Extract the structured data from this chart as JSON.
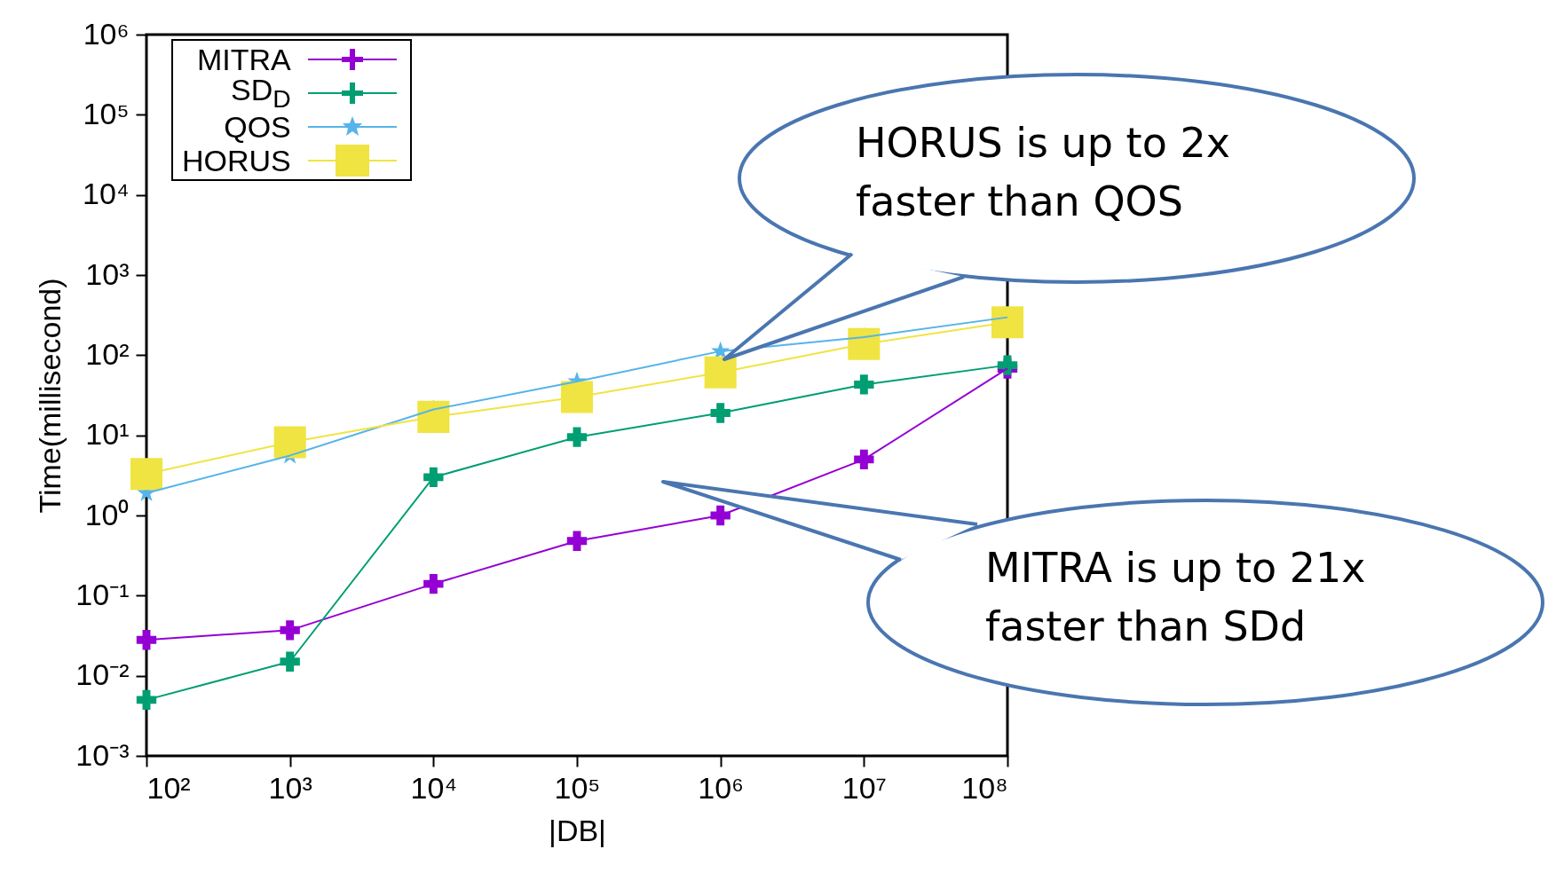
{
  "chart_data": {
    "type": "line",
    "xlabel": "|DB|",
    "ylabel": "Time(millisecond)",
    "log": "xy",
    "legend": "top left",
    "grid": false,
    "x": [
      100,
      1000,
      10000,
      100000,
      1000000,
      10000000,
      100000000
    ],
    "xlim": [
      100,
      100000000
    ],
    "xticks": [
      {
        "value": 100,
        "label": "10²"
      },
      {
        "value": 1000,
        "label": "10³"
      },
      {
        "value": 10000,
        "label": "10⁴"
      },
      {
        "value": 100000,
        "label": "10⁵"
      },
      {
        "value": 1000000,
        "label": "10⁶"
      },
      {
        "value": 10000000,
        "label": "10⁷"
      },
      {
        "value": 100000000,
        "label": "10⁸"
      }
    ],
    "ylim": [
      0.001,
      1000000
    ],
    "yticks": [
      {
        "value": 0.001,
        "label": "10⁻³"
      },
      {
        "value": 0.01,
        "label": "10⁻²"
      },
      {
        "value": 0.1,
        "label": "10⁻¹"
      },
      {
        "value": 1,
        "label": "10⁰"
      },
      {
        "value": 10,
        "label": "10¹"
      },
      {
        "value": 100,
        "label": "10²"
      },
      {
        "value": 1000,
        "label": "10³"
      },
      {
        "value": 10000,
        "label": "10⁴"
      },
      {
        "value": 100000,
        "label": "10⁵"
      },
      {
        "value": 1000000,
        "label": "10⁶"
      }
    ],
    "series": [
      {
        "name": "MITRA",
        "color": "#9400d3",
        "marker": "cross",
        "values": [
          0.028,
          0.037,
          0.14,
          0.48,
          1.0,
          5,
          68
        ]
      },
      {
        "name": "SD$_{D}$",
        "color": "#009e73",
        "marker": "cross",
        "values": [
          0.005,
          0.015,
          3,
          9.5,
          19,
          43,
          75
        ]
      },
      {
        "name": "QOS",
        "color": "#56b4e9",
        "marker": "star",
        "values": [
          1.9,
          5.6,
          21,
          47,
          112,
          168,
          297
        ]
      },
      {
        "name": "HORUS",
        "color": "#f0e442",
        "marker": "square",
        "values": [
          3.3,
          8.2,
          17,
          30,
          61,
          138,
          257
        ]
      }
    ],
    "annotations": [
      "HORUS is up to 2x\nfaster than QOS",
      "MITRA is up to 21x\nfaster than SDd"
    ]
  }
}
